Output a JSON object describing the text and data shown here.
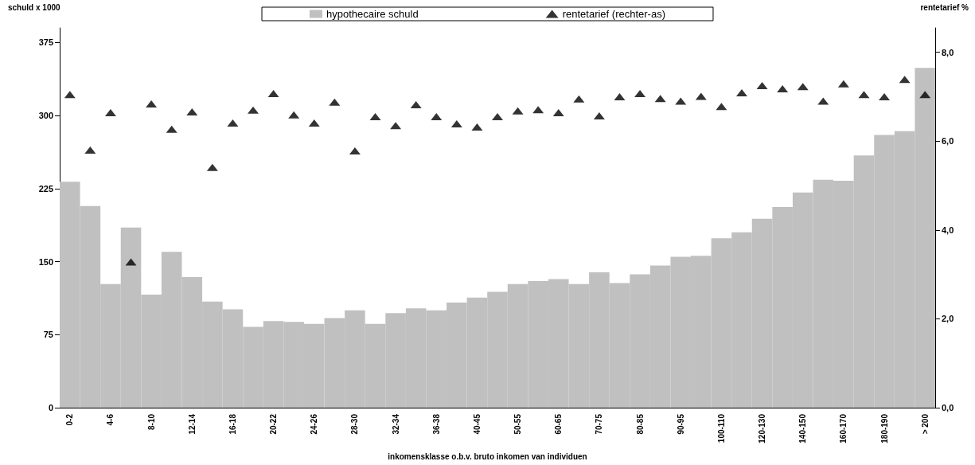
{
  "chart_data": {
    "type": "bar",
    "xlabel": "inkomensklasse o.b.v. bruto inkomen van individuen",
    "ylabel": "schuld x 1000",
    "y2label": "rentetarief %",
    "categories": [
      "0-2",
      null,
      "4-6",
      null,
      "8-10",
      null,
      "12-14",
      null,
      "16-18",
      null,
      "20-22",
      null,
      "24-26",
      null,
      "28-30",
      null,
      "32-34",
      null,
      "36-38",
      null,
      "40-45",
      null,
      "50-55",
      null,
      "60-65",
      null,
      "70-75",
      null,
      "80-85",
      null,
      "90-95",
      null,
      "100-110",
      null,
      "120-130",
      null,
      "140-150",
      null,
      "160-170",
      null,
      "180-190",
      null,
      "> 200"
    ],
    "series": [
      {
        "name": "hypothecaire schuld",
        "color": "#c0c0c0",
        "values": [
          232,
          207,
          127,
          185,
          116,
          160,
          134,
          109,
          101,
          83,
          89,
          88,
          86,
          92,
          100,
          86,
          97,
          102,
          100,
          108,
          113,
          119,
          127,
          130,
          132,
          127,
          139,
          128,
          137,
          146,
          155,
          156,
          174,
          180,
          194,
          206,
          221,
          234,
          233,
          259,
          280,
          284,
          349
        ]
      },
      {
        "name": "rentetarief (rechter-as)",
        "type": "scatter",
        "axis": "y2",
        "color": "#000000",
        "marker": "triangle",
        "values": [
          7.05,
          5.8,
          6.64,
          3.28,
          6.84,
          6.27,
          6.66,
          5.41,
          6.41,
          6.7,
          7.07,
          6.59,
          6.41,
          6.88,
          5.78,
          6.55,
          6.35,
          6.82,
          6.55,
          6.39,
          6.32,
          6.55,
          6.68,
          6.71,
          6.64,
          6.95,
          6.57,
          7.0,
          7.07,
          6.96,
          6.9,
          7.01,
          6.78,
          7.09,
          7.25,
          7.18,
          7.23,
          6.9,
          7.29,
          7.05,
          7.0,
          7.39,
          7.05
        ]
      }
    ],
    "ylim": [
      0,
      390
    ],
    "yticks": [
      0,
      75,
      150,
      225,
      300,
      375
    ],
    "y2lim": [
      0,
      8.55
    ],
    "y2ticks": [
      {
        "value": 0,
        "label": "0,0"
      },
      {
        "value": 2,
        "label": "2,0"
      },
      {
        "value": 4,
        "label": "4,0"
      },
      {
        "value": 6,
        "label": "6,0"
      },
      {
        "value": 8,
        "label": "8,0"
      }
    ],
    "grid": false,
    "legend": "top"
  }
}
